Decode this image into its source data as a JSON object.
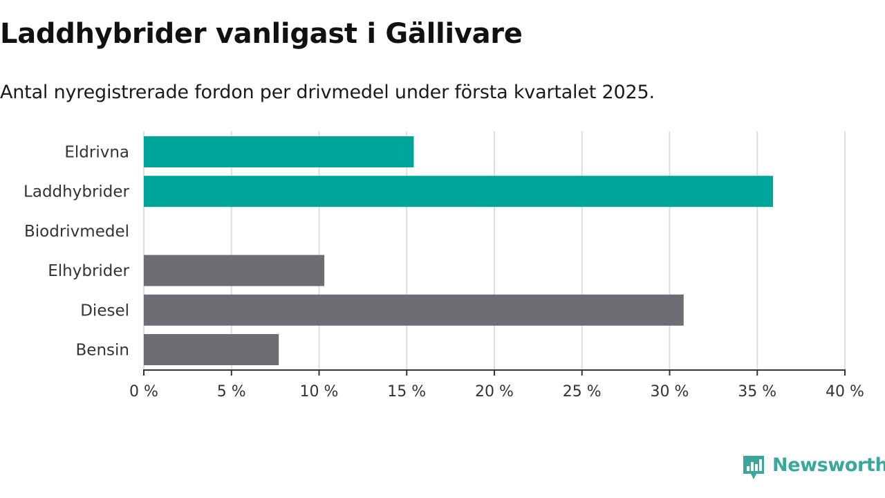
{
  "chart_data": {
    "type": "bar",
    "orientation": "horizontal",
    "title": "Laddhybrider vanligast i Gällivare",
    "subtitle": "Antal nyregistrerade fordon per drivmedel under första kvartalet 2025.",
    "categories": [
      "Eldrivna",
      "Laddhybrider",
      "Biodrivmedel",
      "Elhybrider",
      "Diesel",
      "Bensin"
    ],
    "values": [
      15.4,
      35.9,
      0,
      10.3,
      30.8,
      7.7
    ],
    "unit": "%",
    "xlim": [
      0,
      40
    ],
    "ticks": [
      0,
      5,
      10,
      15,
      20,
      25,
      30,
      35,
      40
    ],
    "tick_labels": [
      "0 %",
      "5 %",
      "10 %",
      "15 %",
      "20 %",
      "25 %",
      "30 %",
      "35 %",
      "40 %"
    ],
    "bar_colors": [
      "#00a59a",
      "#00a59a",
      "#00a59a",
      "#6e6d73",
      "#6e6d73",
      "#6e6d73"
    ],
    "grid": true,
    "grid_color": "#dddddd",
    "axis_color": "#333333"
  },
  "brand": {
    "name": "Newsworthy",
    "color": "#3aa79c",
    "icon": "newsworthy-logo-icon"
  }
}
